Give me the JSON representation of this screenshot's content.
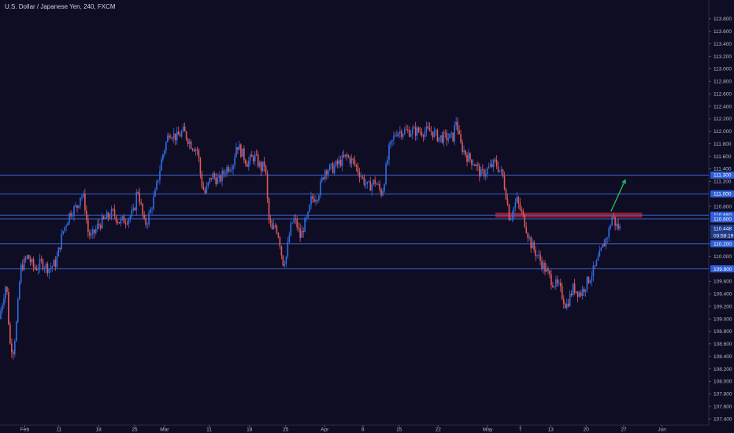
{
  "chart_data": {
    "type": "candlestick",
    "title": "U.S. Dollar / Japanese Yen, 240, FXCM",
    "symbol": "USDJPY",
    "interval": "240",
    "source": "FXCM",
    "ylim": [
      107.3,
      114.0
    ],
    "y_ticks": [
      113.8,
      113.6,
      113.4,
      113.2,
      113.0,
      112.8,
      112.6,
      112.4,
      112.2,
      112.0,
      111.8,
      111.6,
      111.4,
      111.2,
      110.8,
      110.2,
      110.0,
      109.6,
      109.4,
      109.2,
      109.0,
      108.8,
      108.6,
      108.4,
      108.2,
      108.0,
      107.8,
      107.6,
      107.4
    ],
    "y_tick_labels": [
      "113.800",
      "113.600",
      "113.400",
      "113.200",
      "113.000",
      "112.800",
      "112.600",
      "112.400",
      "112.200",
      "112.000",
      "111.800",
      "111.600",
      "111.400",
      "111.200",
      "110.800",
      "110.200",
      "110.000",
      "109.600",
      "109.400",
      "109.200",
      "109.000",
      "108.800",
      "108.600",
      "108.400",
      "108.200",
      "108.000",
      "107.800",
      "107.600",
      "107.400"
    ],
    "x_tick_labels": [
      "Feb",
      "11",
      "18",
      "25",
      "Mar",
      "11",
      "18",
      "25",
      "Apr",
      "8",
      "15",
      "22",
      "May",
      "7",
      "13",
      "20",
      "27",
      "Jun"
    ],
    "x_tick_frac": [
      0.035,
      0.083,
      0.139,
      0.19,
      0.232,
      0.295,
      0.352,
      0.403,
      0.458,
      0.512,
      0.563,
      0.618,
      0.688,
      0.734,
      0.777,
      0.827,
      0.88,
      0.934
    ],
    "horizontal_levels": [
      {
        "value": 111.3,
        "label": "111.300"
      },
      {
        "value": 111.0,
        "label": "111.000"
      },
      {
        "value": 110.66,
        "label": "110.660"
      },
      {
        "value": 110.6,
        "label": "110.600"
      },
      {
        "value": 110.2,
        "label": "110.200"
      },
      {
        "value": 109.8,
        "label": "109.800"
      }
    ],
    "current_price": {
      "value": 110.448,
      "label": "110.448",
      "countdown": "03:58:19"
    },
    "resistance_zone": {
      "low": 110.62,
      "high": 110.7,
      "start_frac": 0.699,
      "end_frac": 0.906
    },
    "arrow": {
      "from": [
        0.862,
        110.72
      ],
      "to": [
        0.882,
        111.22
      ],
      "color": "#22c55e"
    },
    "path_points": [
      [
        0.0,
        109.0
      ],
      [
        0.01,
        109.6
      ],
      [
        0.015,
        108.6
      ],
      [
        0.02,
        108.5
      ],
      [
        0.025,
        109.0
      ],
      [
        0.03,
        109.8
      ],
      [
        0.04,
        110.0
      ],
      [
        0.05,
        109.8
      ],
      [
        0.06,
        109.9
      ],
      [
        0.07,
        109.8
      ],
      [
        0.08,
        109.9
      ],
      [
        0.09,
        110.4
      ],
      [
        0.1,
        110.7
      ],
      [
        0.11,
        110.8
      ],
      [
        0.115,
        111.0
      ],
      [
        0.12,
        110.9
      ],
      [
        0.125,
        110.4
      ],
      [
        0.13,
        110.3
      ],
      [
        0.14,
        110.5
      ],
      [
        0.15,
        110.6
      ],
      [
        0.16,
        110.7
      ],
      [
        0.17,
        110.55
      ],
      [
        0.18,
        110.6
      ],
      [
        0.19,
        110.7
      ],
      [
        0.195,
        111.1
      ],
      [
        0.2,
        110.8
      ],
      [
        0.205,
        110.5
      ],
      [
        0.21,
        110.6
      ],
      [
        0.22,
        111.0
      ],
      [
        0.23,
        111.6
      ],
      [
        0.24,
        112.0
      ],
      [
        0.25,
        111.9
      ],
      [
        0.26,
        112.0
      ],
      [
        0.27,
        111.8
      ],
      [
        0.28,
        111.7
      ],
      [
        0.285,
        111.2
      ],
      [
        0.29,
        111.0
      ],
      [
        0.3,
        111.3
      ],
      [
        0.31,
        111.2
      ],
      [
        0.32,
        111.4
      ],
      [
        0.33,
        111.5
      ],
      [
        0.335,
        111.8
      ],
      [
        0.34,
        111.7
      ],
      [
        0.35,
        111.5
      ],
      [
        0.36,
        111.6
      ],
      [
        0.37,
        111.4
      ],
      [
        0.375,
        111.5
      ],
      [
        0.38,
        110.6
      ],
      [
        0.385,
        110.4
      ],
      [
        0.39,
        110.5
      ],
      [
        0.395,
        110.3
      ],
      [
        0.4,
        109.9
      ],
      [
        0.405,
        110.0
      ],
      [
        0.41,
        110.4
      ],
      [
        0.415,
        110.6
      ],
      [
        0.42,
        110.5
      ],
      [
        0.425,
        110.3
      ],
      [
        0.43,
        110.5
      ],
      [
        0.435,
        110.6
      ],
      [
        0.44,
        110.9
      ],
      [
        0.45,
        111.0
      ],
      [
        0.455,
        111.2
      ],
      [
        0.46,
        111.4
      ],
      [
        0.47,
        111.4
      ],
      [
        0.48,
        111.5
      ],
      [
        0.49,
        111.6
      ],
      [
        0.5,
        111.5
      ],
      [
        0.51,
        111.3
      ],
      [
        0.52,
        111.1
      ],
      [
        0.53,
        111.2
      ],
      [
        0.535,
        111.1
      ],
      [
        0.54,
        111.0
      ],
      [
        0.55,
        111.7
      ],
      [
        0.56,
        112.0
      ],
      [
        0.57,
        112.0
      ],
      [
        0.58,
        112.0
      ],
      [
        0.59,
        112.0
      ],
      [
        0.6,
        112.0
      ],
      [
        0.61,
        112.0
      ],
      [
        0.62,
        111.9
      ],
      [
        0.63,
        111.9
      ],
      [
        0.64,
        111.9
      ],
      [
        0.645,
        112.2
      ],
      [
        0.65,
        111.8
      ],
      [
        0.66,
        111.6
      ],
      [
        0.67,
        111.5
      ],
      [
        0.68,
        111.3
      ],
      [
        0.69,
        111.4
      ],
      [
        0.7,
        111.5
      ],
      [
        0.71,
        111.3
      ],
      [
        0.715,
        111.0
      ],
      [
        0.72,
        110.6
      ],
      [
        0.73,
        110.9
      ],
      [
        0.74,
        110.6
      ],
      [
        0.75,
        110.2
      ],
      [
        0.76,
        110.0
      ],
      [
        0.77,
        109.8
      ],
      [
        0.78,
        109.6
      ],
      [
        0.79,
        109.5
      ],
      [
        0.8,
        109.2
      ],
      [
        0.81,
        109.5
      ],
      [
        0.82,
        109.4
      ],
      [
        0.83,
        109.6
      ],
      [
        0.84,
        109.8
      ],
      [
        0.85,
        110.1
      ],
      [
        0.86,
        110.4
      ],
      [
        0.865,
        110.66
      ],
      [
        0.87,
        110.5
      ],
      [
        0.875,
        110.45
      ]
    ]
  },
  "colors": {
    "background": "#0f0d24",
    "bull": "#2f6ee8",
    "bear": "#e05a5a",
    "level_line": "#3b64c8",
    "tag": "#2f5ed6",
    "zone": "#b01c2a"
  }
}
